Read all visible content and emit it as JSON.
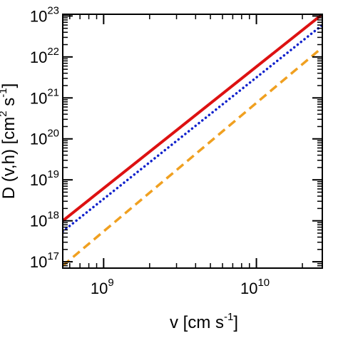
{
  "chart_data": {
    "type": "line",
    "title": "",
    "xlabel": "v [cm s",
    "xlabel_sup": "-1",
    "xlabel_close": "]",
    "ylabel": "D (v,h) [cm",
    "ylabel_sup": "2",
    "ylabel_tail": " s",
    "ylabel_sup2": "-1",
    "ylabel_close": "]",
    "x_scale": "log",
    "y_scale": "log",
    "xlim": [
      540000000,
      27000000000
    ],
    "ylim": [
      70000000000000000,
      110000000000000000000000
    ],
    "x_ticks": [
      {
        "value": 1000000000,
        "base": "10",
        "exp": "9"
      },
      {
        "value": 10000000000,
        "base": "10",
        "exp": "10"
      }
    ],
    "y_ticks": [
      {
        "value": 1e+17,
        "base": "10",
        "exp": "17"
      },
      {
        "value": 1e+18,
        "base": "10",
        "exp": "18"
      },
      {
        "value": 1e+19,
        "base": "10",
        "exp": "19"
      },
      {
        "value": 1e+20,
        "base": "10",
        "exp": "20"
      },
      {
        "value": 1e+21,
        "base": "10",
        "exp": "21"
      },
      {
        "value": 1e+22,
        "base": "10",
        "exp": "22"
      },
      {
        "value": 1e+23,
        "base": "10",
        "exp": "23"
      }
    ],
    "grid": false,
    "legend": "none",
    "series": [
      {
        "color": "#dd1111",
        "style": "solid",
        "x": [
          540000000,
          27000000000
        ],
        "y": [
          1e+18,
          1.1e+23
        ]
      },
      {
        "color": "#1122cc",
        "style": "dotted",
        "x": [
          540000000,
          27000000000
        ],
        "y": [
          5.5e+17,
          6e+22
        ]
      },
      {
        "color": "#f0a020",
        "style": "dashed",
        "x": [
          540000000,
          27000000000
        ],
        "y": [
          8e+16,
          1.7e+22
        ]
      }
    ]
  }
}
